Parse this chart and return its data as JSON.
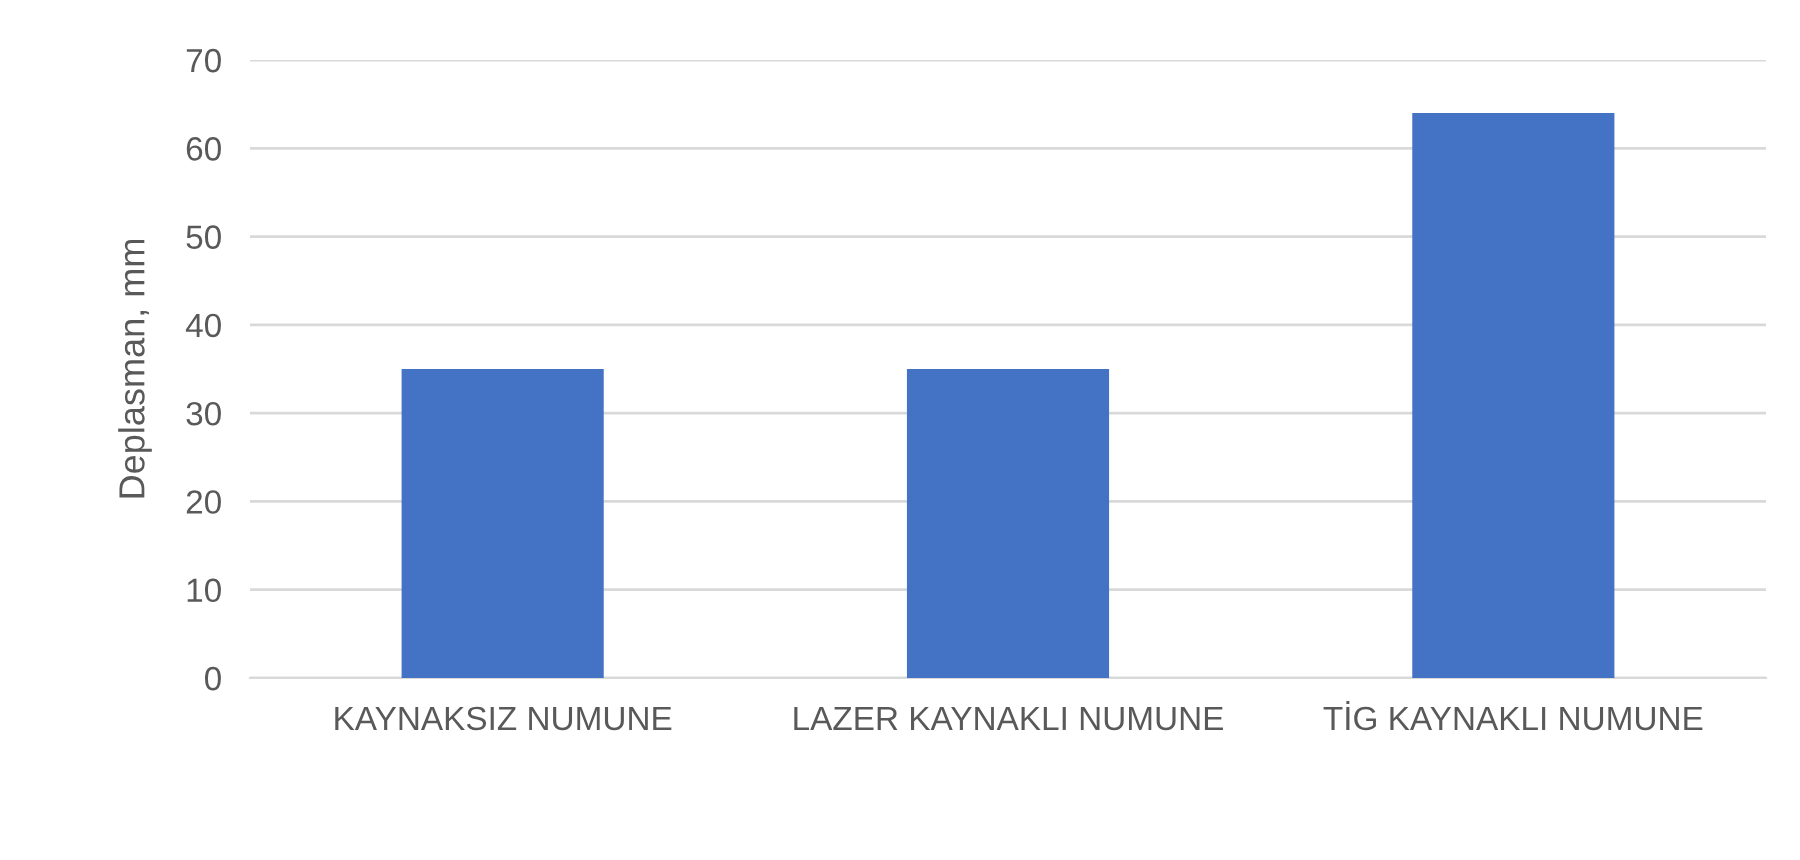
{
  "chart_data": {
    "type": "bar",
    "ylabel": "Deplasman, mm",
    "categories": [
      "KAYNAKSIZ NUMUNE",
      "LAZER KAYNAKLI NUMUNE",
      "TİG KAYNAKLI NUMUNE"
    ],
    "values": [
      35,
      35,
      64
    ],
    "color": "#4472c4",
    "ylim": [
      0,
      70
    ],
    "yticks": [
      0,
      10,
      20,
      30,
      40,
      50,
      60,
      70
    ],
    "grid": "y",
    "legend": false
  }
}
